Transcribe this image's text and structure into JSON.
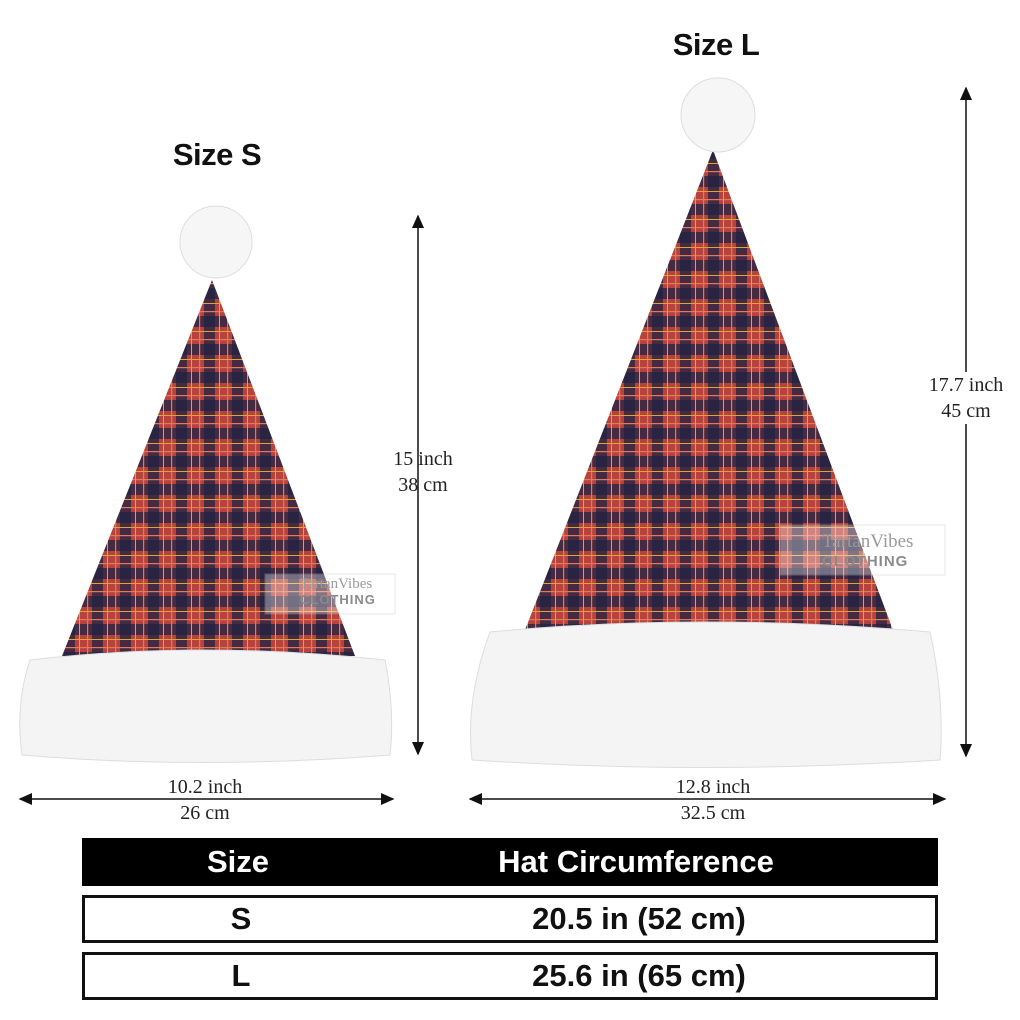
{
  "sizes": [
    {
      "title": "Size S",
      "height_inch": "15 inch",
      "height_cm": "38 cm",
      "width_inch": "10.2 inch",
      "width_cm": "26 cm"
    },
    {
      "title": "Size L",
      "height_inch": "17.7 inch",
      "height_cm": "45 cm",
      "width_inch": "12.8 inch",
      "width_cm": "32.5 cm"
    }
  ],
  "watermark": {
    "line1": "TartanVibes",
    "line2": "CLOTHING"
  },
  "table": {
    "headers": [
      "Size",
      "Hat Circumference"
    ],
    "rows": [
      [
        "S",
        "20.5 in (52 cm)"
      ],
      [
        "L",
        "25.6 in (65 cm)"
      ]
    ]
  },
  "colors": {
    "plaid_red": "#b8423c",
    "plaid_navy": "#1f2142",
    "plaid_yellow": "#d9a63a",
    "fur": "#f4f4f4"
  }
}
